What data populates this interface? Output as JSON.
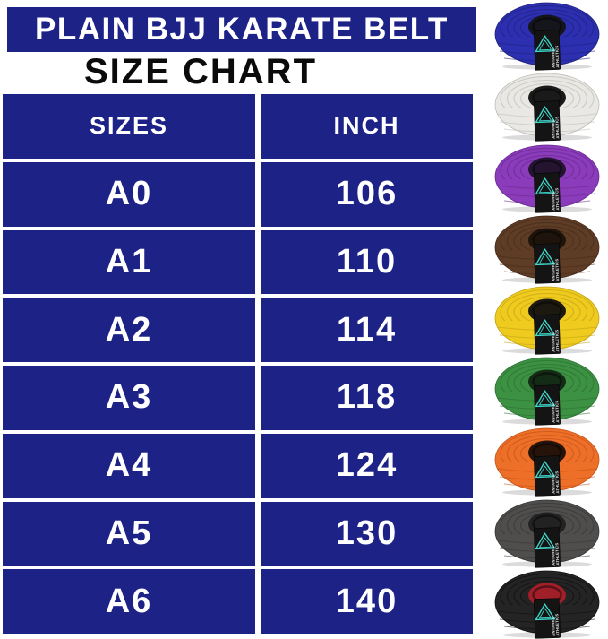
{
  "colors": {
    "navy": "#1d2287",
    "banner_text": "#ffffff",
    "subtitle_text": "#0b0b0b",
    "cell_text": "#ffffff",
    "tag_bg": "#141414",
    "tag_logo": "#3fd8cb",
    "tag_text": "#e8e8e8"
  },
  "header": {
    "title": "PLAIN BJJ KARATE BELT",
    "subtitle": "SIZE CHART"
  },
  "table": {
    "columns": [
      "SIZES",
      "INCH"
    ],
    "rows": [
      [
        "A0",
        "106"
      ],
      [
        "A1",
        "110"
      ],
      [
        "A2",
        "114"
      ],
      [
        "A3",
        "118"
      ],
      [
        "A4",
        "124"
      ],
      [
        "A5",
        "130"
      ],
      [
        "A6",
        "140"
      ]
    ]
  },
  "chart_data": {
    "type": "table",
    "title": "PLAIN BJJ KARATE BELT SIZE CHART",
    "columns": [
      "SIZES",
      "INCH"
    ],
    "rows": [
      [
        "A0",
        106
      ],
      [
        "A1",
        110
      ],
      [
        "A2",
        114
      ],
      [
        "A3",
        118
      ],
      [
        "A4",
        124
      ],
      [
        "A5",
        130
      ],
      [
        "A6",
        140
      ]
    ]
  },
  "belts": {
    "brand_line1": "ANTARES",
    "brand_line2": "ATHLETICS",
    "items": [
      {
        "name": "blue",
        "body": "#2b2fb0",
        "ring": "#1e2178",
        "hole": "#15151c"
      },
      {
        "name": "white",
        "body": "#e9e8e4",
        "ring": "#bdbcb6",
        "hole": "#1a1a1a"
      },
      {
        "name": "purple",
        "body": "#8a3cba",
        "ring": "#67278e",
        "hole": "#241430"
      },
      {
        "name": "brown",
        "body": "#5e3c26",
        "ring": "#422918",
        "hole": "#1f140c"
      },
      {
        "name": "yellow",
        "body": "#eecb1e",
        "ring": "#c1a112",
        "hole": "#1c1a10"
      },
      {
        "name": "green",
        "body": "#3d9143",
        "ring": "#2a6e31",
        "hole": "#142b16"
      },
      {
        "name": "orange",
        "body": "#ee6f27",
        "ring": "#c2521a",
        "hole": "#26130a"
      },
      {
        "name": "gray",
        "body": "#4f4e4d",
        "ring": "#343433",
        "hole": "#222222"
      },
      {
        "name": "black",
        "body": "#242424",
        "ring": "#0e0e0e",
        "hole": "#a11f29"
      }
    ]
  }
}
